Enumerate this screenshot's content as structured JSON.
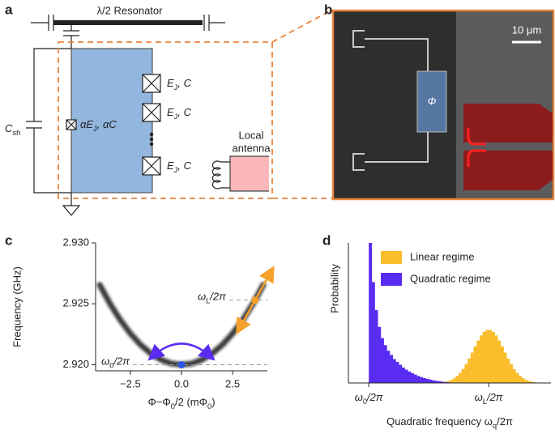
{
  "panels": {
    "a": {
      "label": "a",
      "resonator": "λ/2 Resonator",
      "csh": [
        "C",
        {
          "sub": "sh"
        }
      ],
      "alpha_junction": [
        "αE",
        {
          "sub": "J"
        },
        ", αC"
      ],
      "junctions": [
        [
          "E",
          {
            "sub": "J"
          },
          ", C"
        ],
        [
          "E",
          {
            "sub": "J"
          },
          ", C"
        ],
        [
          "E",
          {
            "sub": "J"
          },
          ", C"
        ]
      ],
      "antenna": [
        "Local",
        "antenna"
      ]
    },
    "b": {
      "label": "b",
      "scale": "10 μm",
      "phi": "Φ"
    },
    "c": {
      "label": "c"
    },
    "d": {
      "label": "d"
    }
  },
  "chart_data": [
    {
      "type": "line",
      "ylabel": "Frequency (GHz)",
      "xlabel": [
        "Φ−Φ",
        {
          "sub": "0"
        },
        "/2 (mΦ",
        {
          "sub": "0"
        },
        ")"
      ],
      "x": [
        -4,
        -3.5,
        -3,
        -2.5,
        -2,
        -1.5,
        -1,
        -0.5,
        0,
        0.5,
        1,
        1.5,
        2,
        2.5,
        3,
        3.5,
        4
      ],
      "series": [
        {
          "color": "#1a1a1a",
          "values": [
            2.92656,
            2.92502,
            2.92369,
            2.92256,
            2.92164,
            2.92092,
            2.92041,
            2.9201,
            2.92,
            2.9201,
            2.92041,
            2.92092,
            2.92164,
            2.92256,
            2.92369,
            2.92502,
            2.92656
          ]
        }
      ],
      "markers": [
        {
          "x": 0,
          "y": 2.92,
          "color": "#2f55e8",
          "label": [
            "ω",
            {
              "sub": "0"
            },
            "/2π"
          ]
        },
        {
          "x": 3.6,
          "y": 2.9253,
          "color": "#f5a02a",
          "label": [
            "ω",
            {
              "sub": "L"
            },
            "/2π"
          ]
        }
      ],
      "xlim": [
        -4.2,
        4.2
      ],
      "ylim": [
        2.9195,
        2.93
      ],
      "xticks": [
        {
          "value": -2.5,
          "label": "−2.5"
        },
        {
          "value": 0,
          "label": "0.0"
        },
        2.5
      ],
      "yticks": [
        {
          "value": 2.92,
          "label": "2.920"
        },
        {
          "value": 2.925,
          "label": "2.925"
        },
        {
          "value": 2.93,
          "label": "2.930"
        }
      ]
    },
    {
      "type": "histogram",
      "ylabel": "Probability",
      "xlabel": [
        "Quadratic frequency ω",
        {
          "sub": "q"
        },
        "/2π"
      ],
      "legend": "upper right",
      "xlim": [
        -0.17,
        1.52
      ],
      "ylim": [
        0,
        1
      ],
      "xticks": [
        {
          "value": 0,
          "label": [
            "ω",
            {
              "sub": "0"
            },
            "/2π"
          ]
        },
        {
          "value": 1,
          "label": [
            "ω",
            {
              "sub": "L"
            },
            "/2π"
          ]
        }
      ],
      "series": [
        {
          "name": "Linear regime",
          "color": "#fbbd2c",
          "bins": [
            0.6,
            0.625,
            0.65,
            0.675,
            0.7,
            0.725,
            0.75,
            0.775,
            0.8,
            0.825,
            0.85,
            0.875,
            0.9,
            0.925,
            0.95,
            0.975,
            1,
            1.025,
            1.05,
            1.075,
            1.1,
            1.125,
            1.15,
            1.175,
            1.2,
            1.225,
            1.25,
            1.275,
            1.3,
            1.325,
            1.35,
            1.375,
            1.4
          ],
          "values": [
            0.0045,
            0.0078,
            0.013,
            0.021,
            0.033,
            0.049,
            0.072,
            0.099,
            0.134,
            0.174,
            0.217,
            0.261,
            0.303,
            0.339,
            0.365,
            0.378,
            0.378,
            0.365,
            0.339,
            0.303,
            0.261,
            0.217,
            0.174,
            0.134,
            0.099,
            0.072,
            0.049,
            0.033,
            0.021,
            0.013,
            0.0078,
            0.0045
          ]
        },
        {
          "name": "Quadratic regime",
          "color": "#5a2cf2",
          "bins": [
            0,
            0.025,
            0.05,
            0.075,
            0.1,
            0.125,
            0.15,
            0.175,
            0.2,
            0.225,
            0.25,
            0.275,
            0.3,
            0.325,
            0.35,
            0.375,
            0.4,
            0.425,
            0.45,
            0.475,
            0.5,
            0.525,
            0.55,
            0.575,
            0.6,
            0.625,
            0.65,
            0.675,
            0.7
          ],
          "values": [
            1.0,
            0.72,
            0.52,
            0.4,
            0.32,
            0.27,
            0.23,
            0.2,
            0.17,
            0.15,
            0.13,
            0.11,
            0.095,
            0.082,
            0.07,
            0.06,
            0.05,
            0.042,
            0.035,
            0.029,
            0.024,
            0.019,
            0.015,
            0.012,
            0.009,
            0.007,
            0.005,
            0.003
          ]
        }
      ]
    }
  ]
}
